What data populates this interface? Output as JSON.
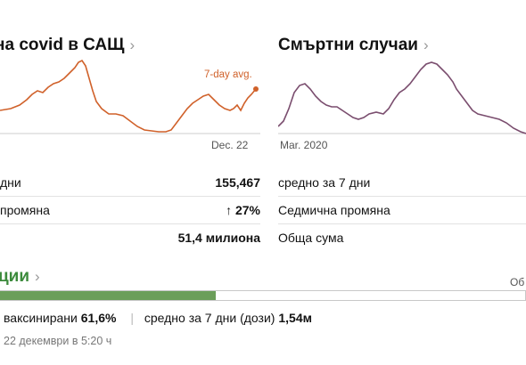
{
  "cases": {
    "title": "на covid в САЩ",
    "chevron": "›",
    "annotation": "7-day avg.",
    "date_label": "Dec. 22",
    "line_color": "#d0612a",
    "rows": [
      {
        "label": "дни",
        "value": "155,467"
      },
      {
        "label": "промяна",
        "value": "↑ 27%"
      },
      {
        "label": "",
        "value": "51,4 милиона"
      }
    ]
  },
  "deaths": {
    "title": "Смъртни случаи",
    "chevron": "›",
    "date_label": "Mar. 2020",
    "line_color": "#7a4d6e",
    "rows": [
      {
        "label": "средно за 7 дни"
      },
      {
        "label": "Седмична промяна"
      },
      {
        "label": "Обща сума"
      }
    ]
  },
  "vaccinations": {
    "title": "ции",
    "chevron": "›",
    "progress_fraction": 0.616,
    "progress_color": "#6b9e5a",
    "right_label": "Об",
    "stat1_label": "ваксинирани",
    "stat1_value": "61,6%",
    "separator": "|",
    "stat2_label": "средно за 7 дни (дози)",
    "stat2_value": "1,54м",
    "updated": "22 декември в 5:20 ч"
  }
}
